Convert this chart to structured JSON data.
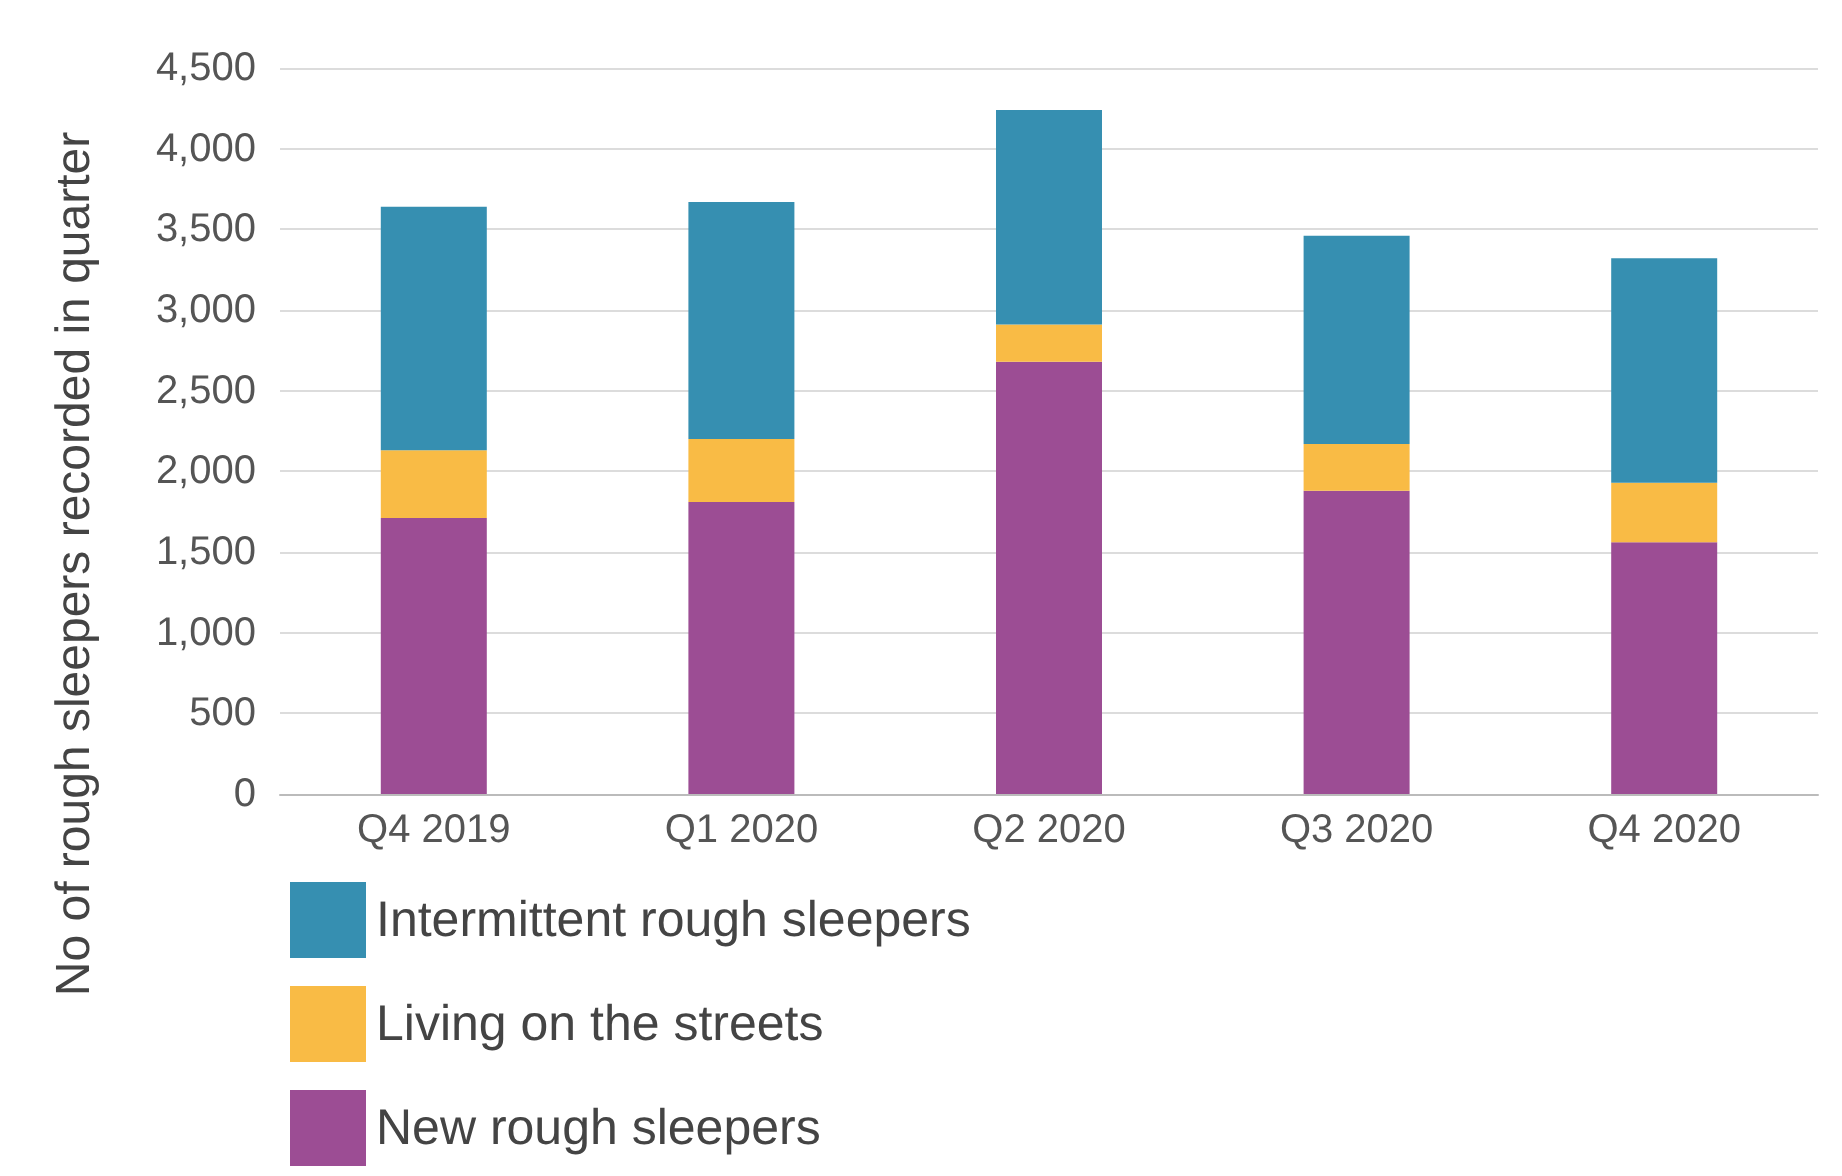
{
  "chart_data": {
    "type": "bar",
    "stacked": true,
    "ylabel": "No of rough sleepers recorded in quarter",
    "categories": [
      "Q4 2019",
      "Q1 2020",
      "Q2 2020",
      "Q3 2020",
      "Q4 2020"
    ],
    "series": [
      {
        "name": "New rough sleepers",
        "color": "#9c4d94",
        "values": [
          1710,
          1810,
          2680,
          1880,
          1560
        ]
      },
      {
        "name": "Living on the streets",
        "color": "#f9bb45",
        "values": [
          420,
          390,
          230,
          290,
          370
        ]
      },
      {
        "name": "Intermittent rough sleepers",
        "color": "#368fb1",
        "values": [
          1510,
          1470,
          1330,
          1290,
          1390
        ]
      }
    ],
    "ylim": [
      0,
      4500
    ],
    "yticks": [
      0,
      500,
      {
        "value": 1000,
        "label": "1,000"
      },
      {
        "value": 1500,
        "label": "1,500"
      },
      {
        "value": 2000,
        "label": "2,000"
      },
      {
        "value": 2500,
        "label": "2,500"
      },
      {
        "value": 3000,
        "label": "3,000"
      },
      {
        "value": 3500,
        "label": "3,500"
      },
      {
        "value": 4000,
        "label": "4,000"
      },
      {
        "value": 4500,
        "label": "4,500"
      }
    ],
    "grid": "y",
    "legend": "bottom left"
  }
}
